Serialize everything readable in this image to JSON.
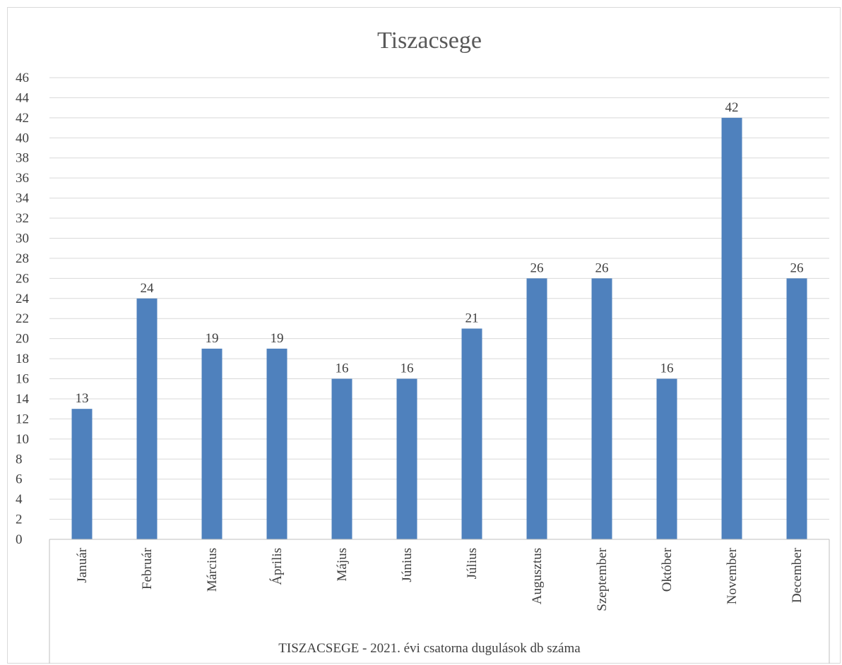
{
  "chart_data": {
    "type": "bar",
    "title": "Tiszacsege",
    "xlabel": "TISZACSEGE - 2021. évi csatorna dugulások db száma",
    "ylabel": "",
    "categories": [
      "Január",
      "Február",
      "Március",
      "Április",
      "Május",
      "Június",
      "Július",
      "Augusztus",
      "Szeptember",
      "Október",
      "November",
      "December"
    ],
    "values": [
      13,
      24,
      19,
      19,
      16,
      16,
      21,
      26,
      26,
      16,
      42,
      26
    ],
    "ylim": [
      0,
      46
    ],
    "ytick_step": 2,
    "grid": true,
    "legend": "none",
    "bar_color": "#4f81bd"
  }
}
